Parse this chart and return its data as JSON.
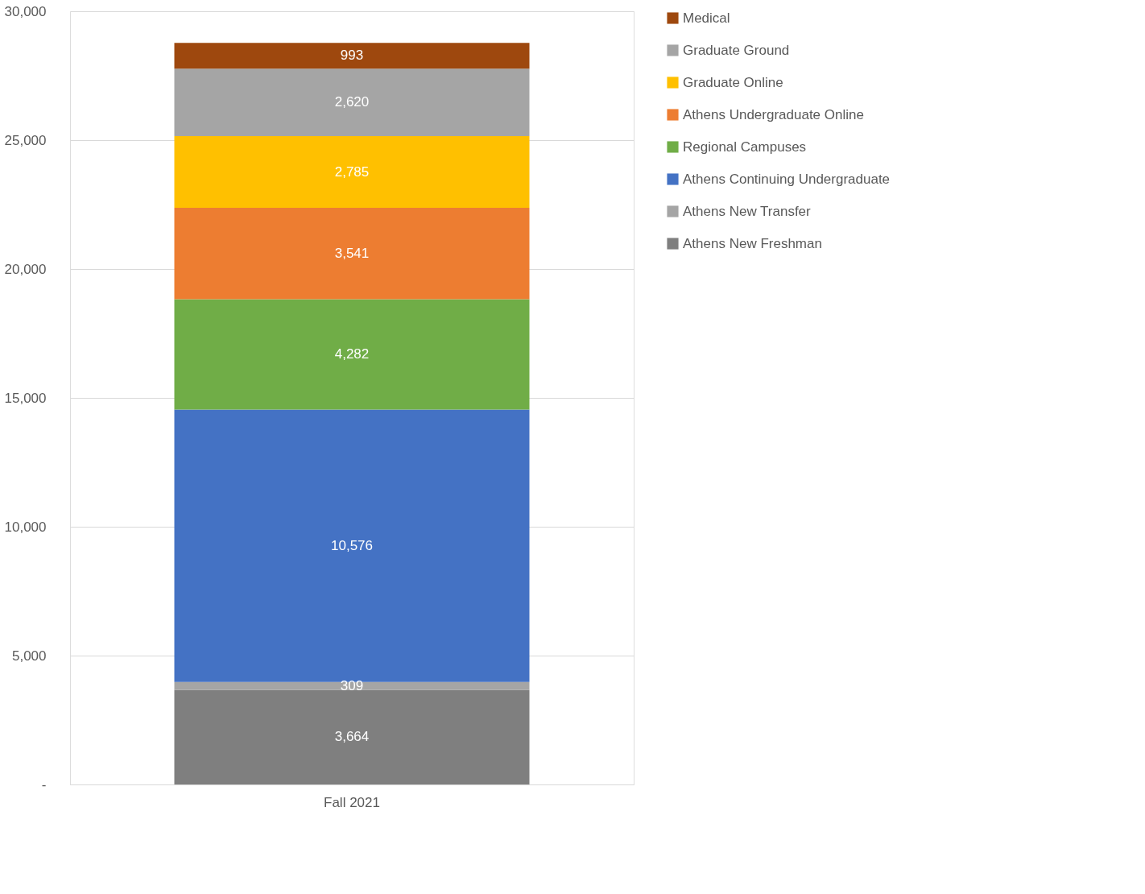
{
  "chart_data": {
    "type": "bar",
    "stacked": true,
    "categories": [
      "Fall 2021"
    ],
    "series": [
      {
        "name": "Athens New Freshman",
        "color": "#7f7f7f",
        "values": [
          3664
        ],
        "value_labels": [
          "3,664"
        ]
      },
      {
        "name": "Athens New Transfer",
        "color": "#a5a5a5",
        "values": [
          309
        ],
        "value_labels": [
          "309"
        ]
      },
      {
        "name": "Athens Continuing Undergraduate",
        "color": "#4472c4",
        "values": [
          10576
        ],
        "value_labels": [
          "10,576"
        ]
      },
      {
        "name": "Regional Campuses",
        "color": "#70ad47",
        "values": [
          4282
        ],
        "value_labels": [
          "4,282"
        ]
      },
      {
        "name": "Athens Undergraduate Online",
        "color": "#ed7d31",
        "values": [
          3541
        ],
        "value_labels": [
          "3,541"
        ]
      },
      {
        "name": "Graduate Online",
        "color": "#ffc000",
        "values": [
          2785
        ],
        "value_labels": [
          "2,785"
        ]
      },
      {
        "name": "Graduate Ground",
        "color": "#a5a5a5",
        "values": [
          2620
        ],
        "value_labels": [
          "2,620"
        ]
      },
      {
        "name": "Medical",
        "color": "#9e480e",
        "values": [
          993
        ],
        "value_labels": [
          "993"
        ]
      }
    ],
    "ylim": [
      0,
      30000
    ],
    "yticks": [
      {
        "value": 0,
        "label": "-"
      },
      {
        "value": 5000,
        "label": "5,000"
      },
      {
        "value": 10000,
        "label": "10,000"
      },
      {
        "value": 15000,
        "label": "15,000"
      },
      {
        "value": 20000,
        "label": "20,000"
      },
      {
        "value": 25000,
        "label": "25,000"
      },
      {
        "value": 30000,
        "label": "30,000"
      }
    ],
    "grid": "y",
    "legend": "right"
  }
}
